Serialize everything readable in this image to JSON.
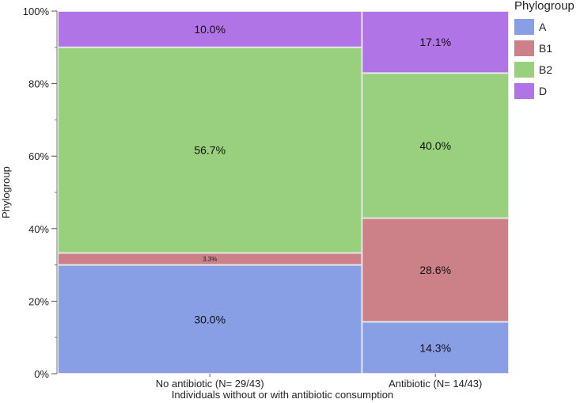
{
  "chart_data": {
    "type": "bar",
    "subtype": "mosaic",
    "title": "",
    "xlabel": "Individuals without or with antibiotic consumption",
    "ylabel": "Phylogroup",
    "ylim": [
      0,
      100
    ],
    "y_ticks": [
      "0%",
      "20%",
      "40%",
      "60%",
      "80%",
      "100%"
    ],
    "categories": [
      "No antibiotic (N= 29/43)",
      "Antibiotic (N= 14/43)"
    ],
    "column_shares": [
      29,
      14
    ],
    "legend": {
      "title": "Phylogroup",
      "placement": "right",
      "entries": [
        "A",
        "B1",
        "B2",
        "D"
      ]
    },
    "series": [
      {
        "name": "A",
        "color": "#889fe6",
        "values": [
          30.0,
          14.3
        ],
        "labels": [
          "30.0%",
          "14.3%"
        ]
      },
      {
        "name": "B1",
        "color": "#cc8088",
        "values": [
          3.3,
          28.6
        ],
        "labels": [
          "3.3%",
          "28.6%"
        ]
      },
      {
        "name": "B2",
        "color": "#98d07e",
        "values": [
          56.7,
          40.0
        ],
        "labels": [
          "56.7%",
          "40.0%"
        ]
      },
      {
        "name": "D",
        "color": "#b074e6",
        "values": [
          10.0,
          17.1
        ],
        "labels": [
          "10.0%",
          "17.1%"
        ]
      }
    ]
  }
}
